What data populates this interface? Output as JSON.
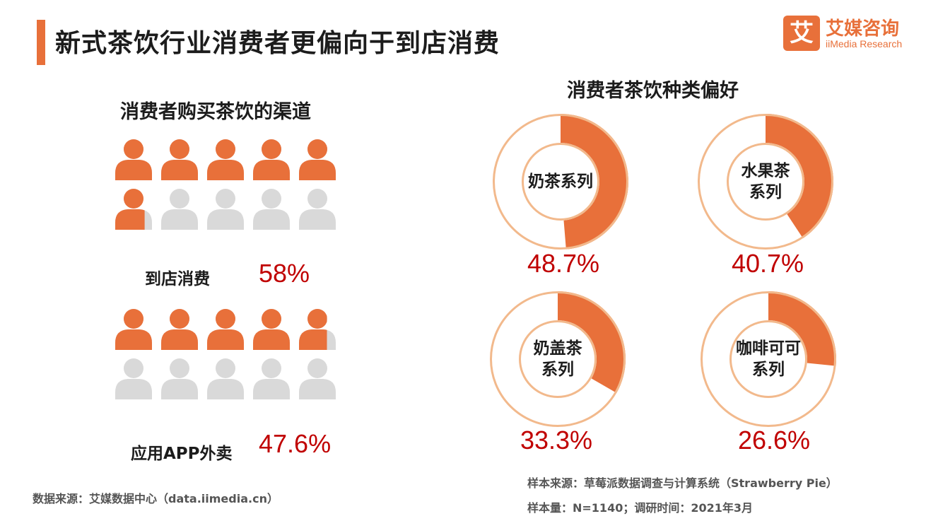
{
  "header": {
    "title": "新式茶饮行业消费者更偏向于到店消费"
  },
  "logo": {
    "mark": "艾",
    "name_cn": "艾媒咨询",
    "name_en": "iiMedia Research",
    "brand_color": "#e8703a"
  },
  "colors": {
    "accent": "#e8703a",
    "person_gray": "#d9d9d9",
    "value_red": "#c00000",
    "ring_light": "#f2b98c"
  },
  "channels": {
    "title": "消费者购买茶饮的渠道",
    "items": [
      {
        "label": "到店消费",
        "value_text": "58%"
      },
      {
        "label": "应用APP外卖",
        "value_text": "47.6%"
      }
    ]
  },
  "preferences": {
    "title": "消费者茶饮种类偏好",
    "items": [
      {
        "label_lines": [
          "奶茶系列"
        ],
        "value_text": "48.7%"
      },
      {
        "label_lines": [
          "水果茶",
          "系列"
        ],
        "value_text": "40.7%"
      },
      {
        "label_lines": [
          "奶盖茶",
          "系列"
        ],
        "value_text": "33.3%"
      },
      {
        "label_lines": [
          "咖啡可可",
          "系列"
        ],
        "value_text": "26.6%"
      }
    ]
  },
  "chart_data": [
    {
      "type": "pictograph",
      "title": "消费者购买茶饮的渠道",
      "categories": [
        "到店消费",
        "应用APP外卖"
      ],
      "values": [
        58,
        47.6
      ],
      "unit": "%",
      "icons_total": 10
    },
    {
      "type": "pie",
      "title": "消费者茶饮种类偏好",
      "categories": [
        "奶茶系列",
        "水果茶系列",
        "奶盖茶系列",
        "咖啡可可系列"
      ],
      "values": [
        48.7,
        40.7,
        33.3,
        26.6
      ],
      "unit": "%"
    }
  ],
  "footer": {
    "source_left": "数据来源：艾媒数据中心（data.iimedia.cn）",
    "sample_source": "样本来源：草莓派数据调查与计算系统（Strawberry Pie）",
    "sample_size": "样本量：N=1140；调研时间：2021年3月"
  }
}
